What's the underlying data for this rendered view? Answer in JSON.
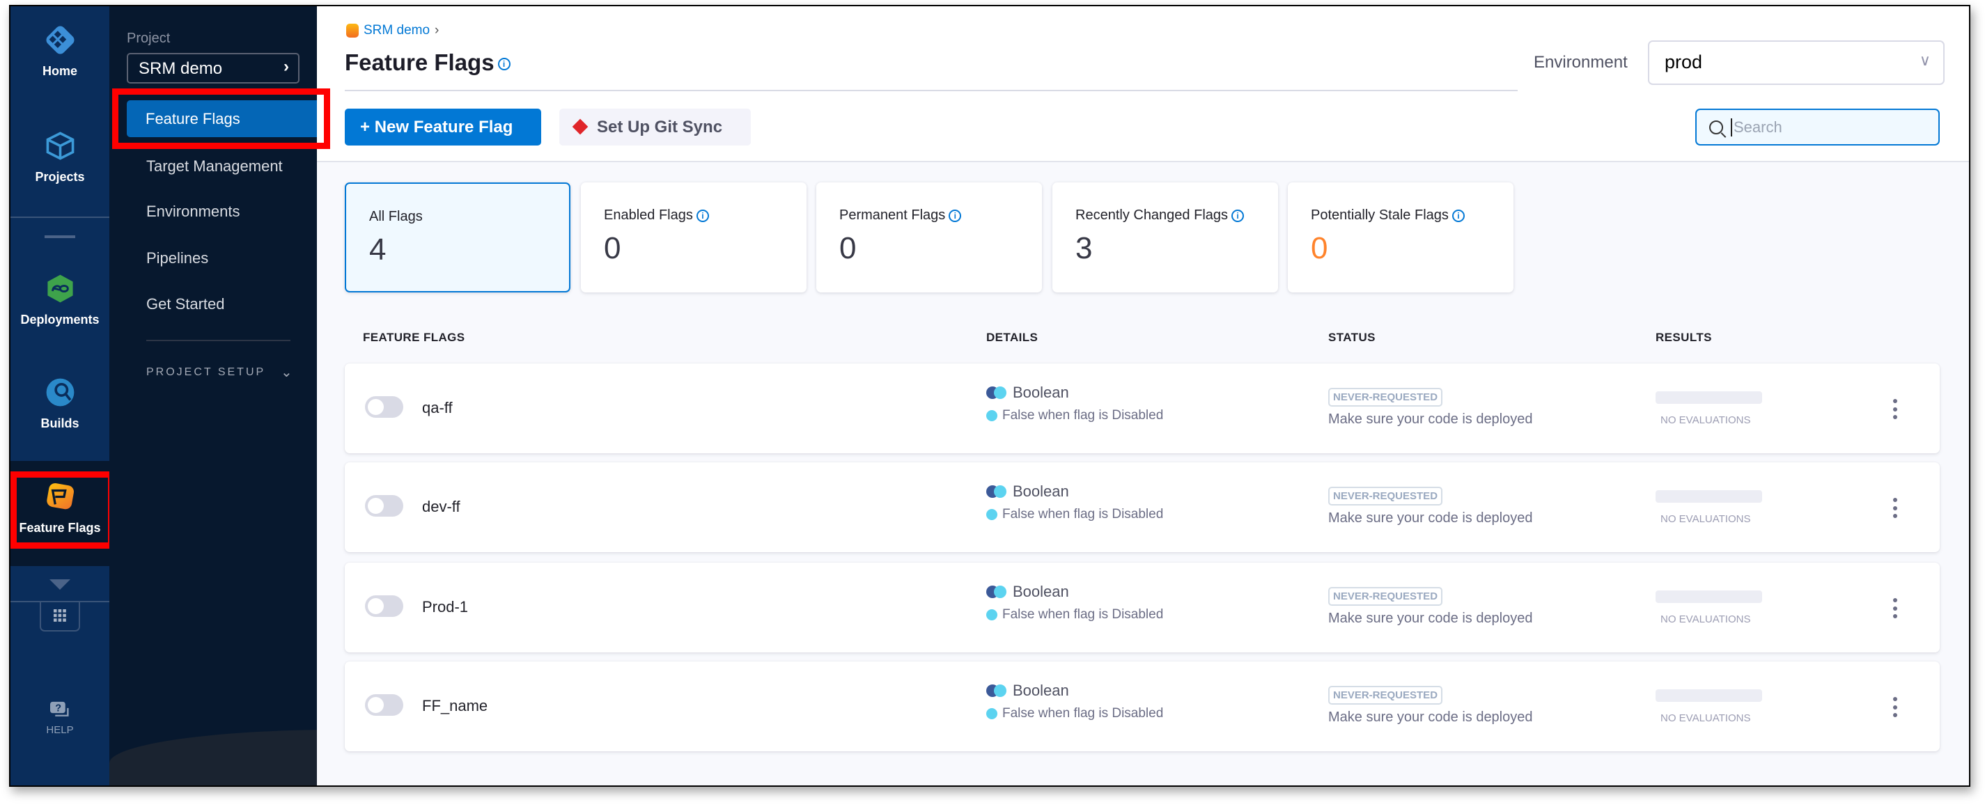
{
  "colors": {
    "accent": "#0278d5",
    "nav_primary": "#0a2d5b",
    "nav_secondary": "#07182e",
    "warning": "#ff832b",
    "highlight": "#ff0000"
  },
  "left_nav": {
    "items": [
      {
        "label": "Home",
        "icon": "harness-home-icon"
      },
      {
        "label": "Projects",
        "icon": "cube-icon"
      },
      {
        "label": "Deployments",
        "icon": "deployments-icon"
      },
      {
        "label": "Builds",
        "icon": "builds-icon"
      },
      {
        "label": "Feature Flags",
        "icon": "feature-flags-icon",
        "active": true
      }
    ],
    "help_label": "HELP"
  },
  "project_nav": {
    "project_label": "Project",
    "project_name": "SRM demo",
    "items": [
      {
        "label": "Feature Flags",
        "active": true
      },
      {
        "label": "Target Management"
      },
      {
        "label": "Environments"
      },
      {
        "label": "Pipelines"
      },
      {
        "label": "Get Started"
      }
    ],
    "setup_label": "PROJECT SETUP"
  },
  "header": {
    "breadcrumb": "SRM demo",
    "title": "Feature Flags",
    "environment_label": "Environment",
    "environment_value": "prod"
  },
  "toolbar": {
    "new_flag": "New Feature Flag",
    "git_sync": "Set Up Git Sync",
    "search_placeholder": "Search"
  },
  "summary_cards": [
    {
      "label": "All Flags",
      "value": "4",
      "selected": true
    },
    {
      "label": "Enabled Flags",
      "value": "0"
    },
    {
      "label": "Permanent Flags",
      "value": "0"
    },
    {
      "label": "Recently Changed Flags",
      "value": "3"
    },
    {
      "label": "Potentially Stale Flags",
      "value": "0"
    }
  ],
  "table": {
    "columns": [
      "FEATURE FLAGS",
      "DETAILS",
      "STATUS",
      "RESULTS"
    ],
    "rows": [
      {
        "name": "qa-ff",
        "enabled": false,
        "type": "Boolean",
        "detail": "False when flag is Disabled",
        "status": "NEVER-REQUESTED",
        "status_text": "Make sure your code is deployed",
        "results": "NO EVALUATIONS"
      },
      {
        "name": "dev-ff",
        "enabled": false,
        "type": "Boolean",
        "detail": "False when flag is Disabled",
        "status": "NEVER-REQUESTED",
        "status_text": "Make sure your code is deployed",
        "results": "NO EVALUATIONS"
      },
      {
        "name": "Prod-1",
        "enabled": false,
        "type": "Boolean",
        "detail": "False when flag is Disabled",
        "status": "NEVER-REQUESTED",
        "status_text": "Make sure your code is deployed",
        "results": "NO EVALUATIONS"
      },
      {
        "name": "FF_name",
        "enabled": false,
        "type": "Boolean",
        "detail": "False when flag is Disabled",
        "status": "NEVER-REQUESTED",
        "status_text": "Make sure your code is deployed",
        "results": "NO EVALUATIONS"
      }
    ]
  }
}
